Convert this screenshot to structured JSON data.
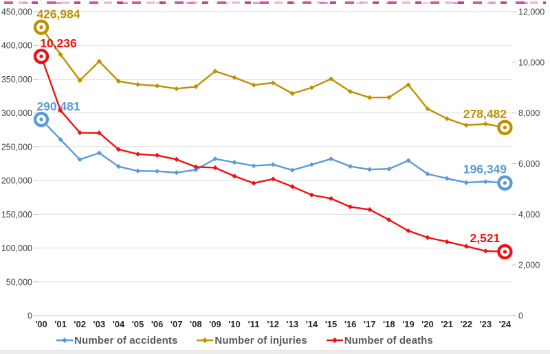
{
  "chart_data": {
    "type": "line",
    "x_labels": [
      "'00",
      "'01",
      "'02",
      "'03",
      "'04",
      "'05",
      "'06",
      "'07",
      "'08",
      "'09",
      "'10",
      "'11",
      "'12",
      "'13",
      "'14",
      "'15",
      "'16",
      "'17",
      "'18",
      "'19",
      "'20",
      "'21",
      "'22",
      "'23",
      "'24"
    ],
    "left_axis": {
      "min": 0,
      "max": 450000,
      "step": 50000,
      "labels": [
        "0",
        "50,000",
        "100,000",
        "150,000",
        "200,000",
        "250,000",
        "300,000",
        "350,000",
        "400,000",
        "450,000"
      ]
    },
    "right_axis": {
      "min": 0,
      "max": 12000,
      "step": 2000,
      "labels": [
        "0",
        "2,000",
        "4,000",
        "6,000",
        "8,000",
        "10,000",
        "12,000"
      ]
    },
    "grid": true,
    "legend_position": "bottom",
    "series": [
      {
        "name": "Number of accidents",
        "color": "#5B9BD5",
        "axis": "left",
        "first_label": "290,481",
        "last_label": "196,349",
        "values": [
          290481,
          260579,
          231026,
          240832,
          220755,
          214171,
          213745,
          211662,
          215822,
          231990,
          226878,
          221711,
          223656,
          215354,
          223552,
          232035,
          220917,
          216335,
          217148,
          229600,
          209654,
          203130,
          196836,
          198296,
          196349
        ]
      },
      {
        "name": "Number of injuries",
        "color": "#BF9000",
        "axis": "left",
        "first_label": "426,984",
        "last_label": "278,482",
        "values": [
          426984,
          386539,
          348149,
          376503,
          346987,
          342233,
          340229,
          335906,
          338962,
          361875,
          352458,
          341391,
          344565,
          328711,
          337497,
          350400,
          331720,
          322829,
          323037,
          341712,
          306194,
          291608,
          281803,
          283799,
          278482
        ]
      },
      {
        "name": "Number of deaths",
        "color": "#EE1111",
        "axis": "right",
        "first_label": "10,236",
        "last_label": "2,521",
        "values": [
          10236,
          8097,
          7222,
          7212,
          6563,
          6376,
          6327,
          6166,
          5870,
          5838,
          5505,
          5229,
          5392,
          5092,
          4762,
          4621,
          4292,
          4185,
          3781,
          3349,
          3081,
          2916,
          2735,
          2551,
          2521
        ]
      }
    ],
    "style": {
      "grid_color": "#DCDCDC",
      "axis_line_color": "#BFBFBF",
      "axis_text_color": "#404040",
      "x_label_color": "#262626",
      "legend_text_color": "#595959",
      "title_strip_color": "#D84398"
    }
  }
}
